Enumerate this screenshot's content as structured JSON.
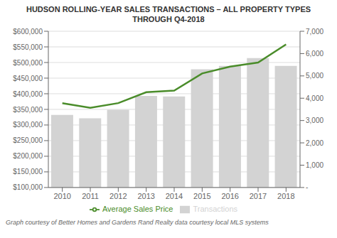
{
  "chart_data": {
    "type": "bar",
    "title": "HUDSON ROLLING-YEAR SALES TRANSACTIONS – ALL PROPERTY TYPES THROUGH Q4-2018",
    "annotations": [
      "Graph courtesy of Better Homes and Gardens Rand Realty data courtesy local MLS systems"
    ],
    "categories": [
      "2010",
      "2011",
      "2012",
      "2013",
      "2014",
      "2015",
      "2016",
      "2017",
      "2018"
    ],
    "series": [
      {
        "name": "Transactions",
        "type": "bar",
        "axis": "y2",
        "color": "#d3d3d3",
        "values": [
          3250,
          3100,
          3480,
          4100,
          4080,
          5300,
          5450,
          5800,
          5450
        ]
      },
      {
        "name": "Average Sales Price",
        "type": "line",
        "color": "#4a8c2a",
        "values": [
          370000,
          355000,
          370000,
          405000,
          410000,
          465000,
          487000,
          500000,
          558000
        ]
      }
    ],
    "ylim": [
      100000,
      600000
    ],
    "yticks": [
      {
        "value": 100000,
        "label": "$100,000"
      },
      {
        "value": 150000,
        "label": "$150,000"
      },
      {
        "value": 200000,
        "label": "$200,000"
      },
      {
        "value": 250000,
        "label": "$250,000"
      },
      {
        "value": 300000,
        "label": "$300,000"
      },
      {
        "value": 350000,
        "label": "$350,000"
      },
      {
        "value": 400000,
        "label": "$400,000"
      },
      {
        "value": 450000,
        "label": "$450,000"
      },
      {
        "value": 500000,
        "label": "$500,000"
      },
      {
        "value": 550000,
        "label": "$550,000"
      },
      {
        "value": 600000,
        "label": "$600,000"
      }
    ],
    "y2lim": [
      0,
      7000
    ],
    "y2ticks": [
      {
        "value": 0,
        "label": "-"
      },
      {
        "value": 1000,
        "label": "1,000"
      },
      {
        "value": 2000,
        "label": "2,000"
      },
      {
        "value": 3000,
        "label": "3,000"
      },
      {
        "value": 4000,
        "label": "4,000"
      },
      {
        "value": 5000,
        "label": "5,000"
      },
      {
        "value": 6000,
        "label": "6,000"
      },
      {
        "value": 7000,
        "label": "7,000"
      }
    ],
    "grid": true,
    "legend": "bottom"
  }
}
